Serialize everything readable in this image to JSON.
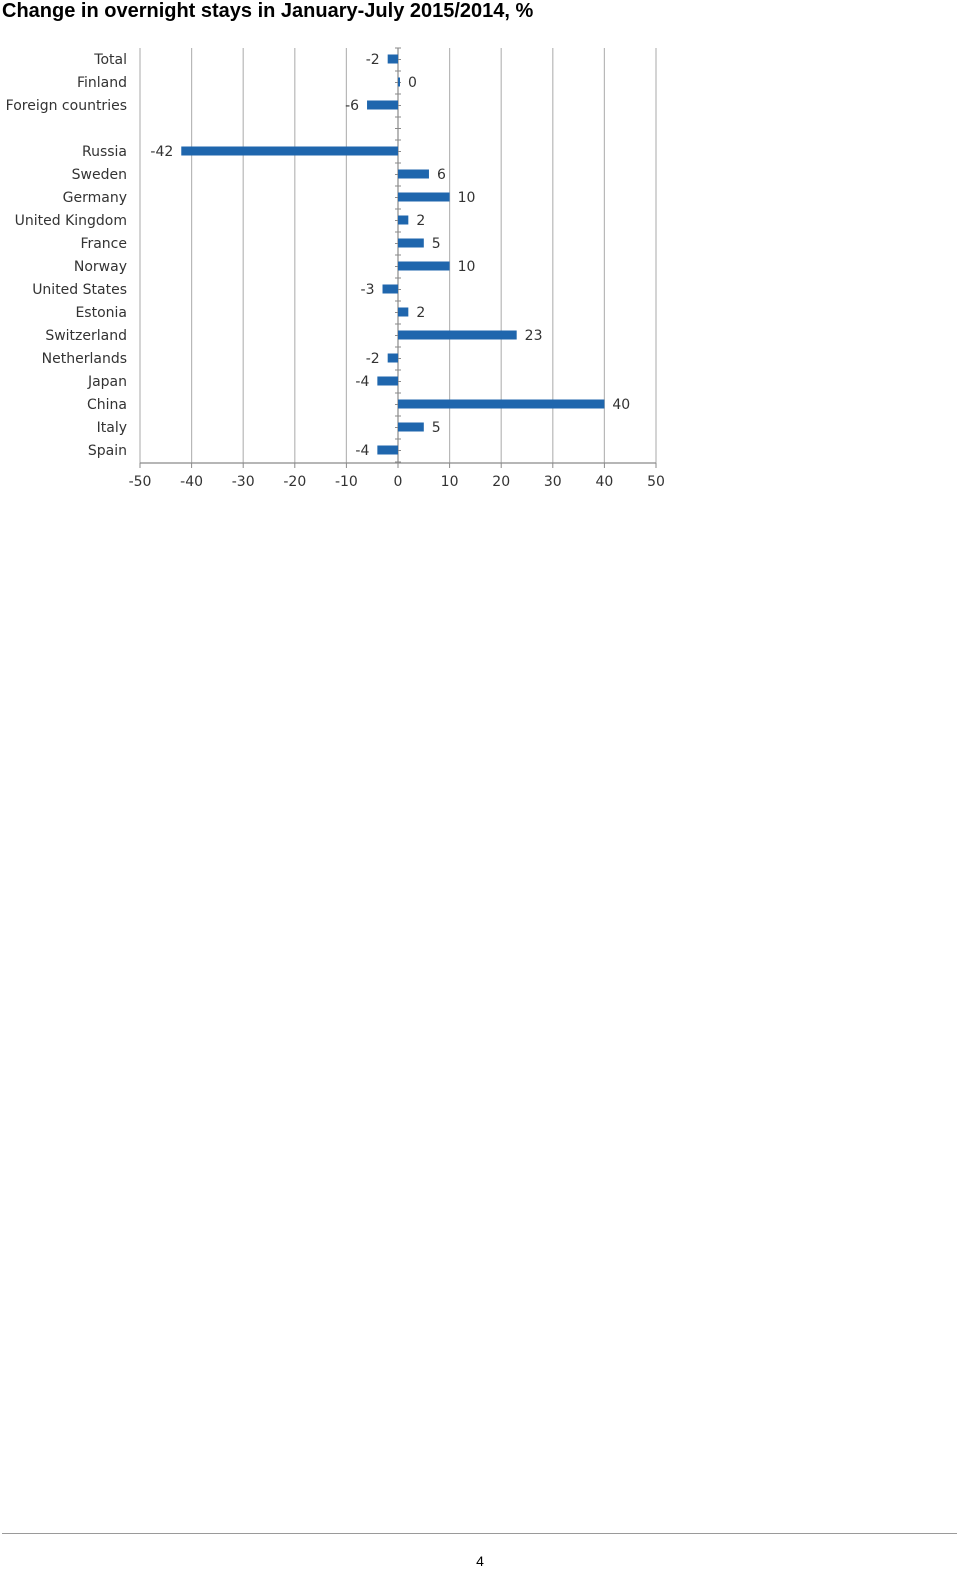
{
  "page": {
    "title": "Change in overnight stays in January-July 2015/2014, %",
    "page_number": "4"
  },
  "colors": {
    "bar": "#1f66ad",
    "grid": "#b8b8b8",
    "axis": "#8a8a8a",
    "text": "#333333"
  },
  "chart_data": {
    "type": "bar",
    "orientation": "horizontal",
    "title": "Change in overnight stays in January-July 2015/2014, %",
    "xlabel": "",
    "ylabel": "",
    "xlim": [
      -50,
      50
    ],
    "xticks": [
      -50,
      -40,
      -30,
      -20,
      -10,
      0,
      10,
      20,
      30,
      40,
      50
    ],
    "grid": "vertical",
    "legend": "none",
    "categories": [
      "Total",
      "Finland",
      "Foreign countries",
      "Russia",
      "Sweden",
      "Germany",
      "United Kingdom",
      "France",
      "Norway",
      "United States",
      "Estonia",
      "Switzerland",
      "Netherlands",
      "Japan",
      "China",
      "Italy",
      "Spain"
    ],
    "values": [
      -2,
      0,
      -6,
      -42,
      6,
      10,
      2,
      5,
      10,
      -3,
      2,
      23,
      -2,
      -4,
      40,
      5,
      -4
    ],
    "data_labels": [
      "-2",
      "0",
      "-6",
      "-42",
      "6",
      "10",
      "2",
      "5",
      "10",
      "-3",
      "2",
      "23",
      "-2",
      "-4",
      "40",
      "5",
      "-4"
    ]
  }
}
